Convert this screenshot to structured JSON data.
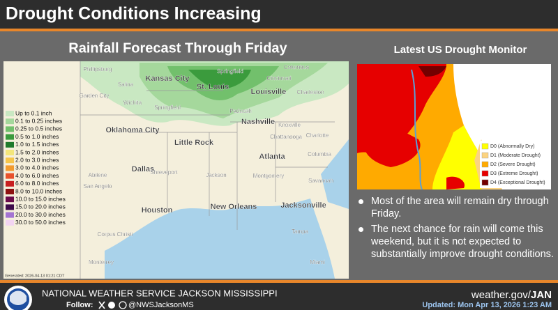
{
  "header": {
    "title": "Drought Conditions Increasing"
  },
  "rainfall": {
    "title": "Rainfall Forecast Through Friday",
    "legend": [
      {
        "label": "Up to 0.1 inch",
        "color": "#c9e8c2"
      },
      {
        "label": "0.1 to 0.25 inches",
        "color": "#a5d89c"
      },
      {
        "label": "0.25 to 0.5 inches",
        "color": "#72c06c"
      },
      {
        "label": "0.5 to 1.0 inches",
        "color": "#3b9b3d"
      },
      {
        "label": "1.0 to 1.5 inches",
        "color": "#1f7a2c"
      },
      {
        "label": "1.5 to 2.0 inches",
        "color": "#f3e67b"
      },
      {
        "label": "2.0 to 3.0 inches",
        "color": "#f6c64b"
      },
      {
        "label": "3.0 to 4.0 inches",
        "color": "#f29b2f"
      },
      {
        "label": "4.0 to 6.0 inches",
        "color": "#e8522b"
      },
      {
        "label": "6.0 to 8.0 inches",
        "color": "#c81f1f"
      },
      {
        "label": "8.0 to 10.0 inches",
        "color": "#8e1111"
      },
      {
        "label": "10.0 to 15.0 inches",
        "color": "#6b0b4b"
      },
      {
        "label": "15.0 to 20.0 inches",
        "color": "#3e0b4b"
      },
      {
        "label": "20.0 to 30.0 inches",
        "color": "#a474d2"
      },
      {
        "label": "30.0 to 50.0 inches",
        "color": "#f2d4f2"
      }
    ],
    "cities": [
      "Phillipsburg",
      "Kansas City",
      "Springfield",
      "Columbus",
      "Cincinnati",
      "Salina",
      "St. Louis",
      "Louisville",
      "Charleston",
      "Garden City",
      "Wichita",
      "Springfield",
      "Paducah",
      "Nashville",
      "Knoxville",
      "Charlotte",
      "Oklahoma City",
      "Little Rock",
      "Chattanooga",
      "Columbia",
      "Atlanta",
      "Dallas",
      "Shreveport",
      "Jackson",
      "Montgomery",
      "Savannah",
      "Abilene",
      "San Angelo",
      "Houston",
      "New Orleans",
      "Jacksonville",
      "Tampa",
      "Corpus Christi",
      "Monterrey",
      "Miami"
    ],
    "generated": "Generated: 2026-04-13 01:21 CDT"
  },
  "drought": {
    "title": "Latest US Drought Monitor",
    "legend": [
      {
        "label": "D0 (Abnormally Dry)",
        "color": "#ffff00"
      },
      {
        "label": "D1 (Moderate Drought)",
        "color": "#fcd37f"
      },
      {
        "label": "D2 (Severe Drought)",
        "color": "#ffaa00"
      },
      {
        "label": "D3 (Extreme Drought)",
        "color": "#e60000"
      },
      {
        "label": "D4 (Exceptional Drought)",
        "color": "#730000"
      }
    ]
  },
  "bullets": [
    "Most of the area will remain dry through Friday.",
    "The next chance for rain will come this weekend, but it is not expected to substantially improve drought conditions."
  ],
  "footer": {
    "office": "NATIONAL WEATHER SERVICE JACKSON MISSISSIPPI",
    "follow": "Follow:",
    "handle": "@NWSJacksonMS",
    "site_prefix": "weather.gov/",
    "site_office": "JAN",
    "updated": "Updated: Mon Apr 13, 2026 1:23 AM"
  }
}
